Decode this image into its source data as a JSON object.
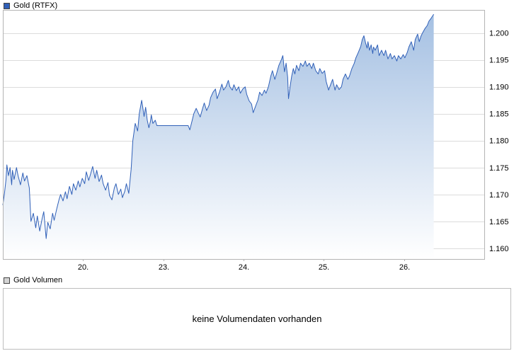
{
  "header": {
    "price_legend": "Gold (RTFX)",
    "volume_legend": "Gold Volumen"
  },
  "volume_panel": {
    "message": "keine Volumendaten vorhanden"
  },
  "colors": {
    "line": "#3060b8",
    "fill_top": "#a3bfe2",
    "fill_bottom": "#ffffff",
    "grid": "#dcdcdc",
    "border": "#b4b4b4",
    "accent": "#3060b8",
    "volume_square": "#d4d4d4",
    "text": "#000000"
  },
  "chart_data": {
    "type": "area",
    "title": "Gold (RTFX)",
    "xlabel": "",
    "ylabel": "",
    "grid": "horizontal",
    "legend_position": "top-left",
    "xlim": [
      0,
      6
    ],
    "ylim": [
      1.158,
      1.2043
    ],
    "x_ticks": [
      {
        "label": "20.",
        "t": 1
      },
      {
        "label": "23.",
        "t": 2
      },
      {
        "label": "24.",
        "t": 3
      },
      {
        "label": "25.",
        "t": 4
      },
      {
        "label": "26.",
        "t": 5
      }
    ],
    "y_ticks": [
      {
        "label": "1.200",
        "value": 1.2
      },
      {
        "label": "1.195",
        "value": 1.195
      },
      {
        "label": "1.190",
        "value": 1.19
      },
      {
        "label": "1.185",
        "value": 1.185
      },
      {
        "label": "1.180",
        "value": 1.18
      },
      {
        "label": "1.175",
        "value": 1.175
      },
      {
        "label": "1.170",
        "value": 1.17
      },
      {
        "label": "1.165",
        "value": 1.165
      },
      {
        "label": "1.160",
        "value": 1.16
      }
    ],
    "points": [
      [
        0.0,
        1.168
      ],
      [
        0.02,
        1.1702
      ],
      [
        0.04,
        1.1728
      ],
      [
        0.05,
        1.1755
      ],
      [
        0.07,
        1.1735
      ],
      [
        0.09,
        1.175
      ],
      [
        0.11,
        1.1718
      ],
      [
        0.12,
        1.1745
      ],
      [
        0.14,
        1.1728
      ],
      [
        0.17,
        1.175
      ],
      [
        0.19,
        1.1735
      ],
      [
        0.22,
        1.1718
      ],
      [
        0.25,
        1.174
      ],
      [
        0.27,
        1.1725
      ],
      [
        0.3,
        1.1735
      ],
      [
        0.33,
        1.1712
      ],
      [
        0.35,
        1.165
      ],
      [
        0.38,
        1.1665
      ],
      [
        0.41,
        1.1638
      ],
      [
        0.43,
        1.166
      ],
      [
        0.46,
        1.1632
      ],
      [
        0.49,
        1.1655
      ],
      [
        0.51,
        1.1668
      ],
      [
        0.54,
        1.1618
      ],
      [
        0.56,
        1.1648
      ],
      [
        0.59,
        1.1636
      ],
      [
        0.62,
        1.1665
      ],
      [
        0.64,
        1.1652
      ],
      [
        0.67,
        1.1672
      ],
      [
        0.7,
        1.169
      ],
      [
        0.72,
        1.17
      ],
      [
        0.75,
        1.1688
      ],
      [
        0.78,
        1.1705
      ],
      [
        0.8,
        1.1692
      ],
      [
        0.83,
        1.1715
      ],
      [
        0.86,
        1.17
      ],
      [
        0.88,
        1.172
      ],
      [
        0.91,
        1.1708
      ],
      [
        0.94,
        1.1725
      ],
      [
        0.96,
        1.1714
      ],
      [
        0.99,
        1.173
      ],
      [
        1.02,
        1.172
      ],
      [
        1.04,
        1.1742
      ],
      [
        1.07,
        1.1726
      ],
      [
        1.09,
        1.1736
      ],
      [
        1.12,
        1.1752
      ],
      [
        1.15,
        1.173
      ],
      [
        1.17,
        1.1745
      ],
      [
        1.2,
        1.1724
      ],
      [
        1.23,
        1.1736
      ],
      [
        1.25,
        1.172
      ],
      [
        1.28,
        1.1708
      ],
      [
        1.31,
        1.1722
      ],
      [
        1.33,
        1.1698
      ],
      [
        1.36,
        1.169
      ],
      [
        1.39,
        1.1712
      ],
      [
        1.41,
        1.172
      ],
      [
        1.44,
        1.17
      ],
      [
        1.47,
        1.171
      ],
      [
        1.49,
        1.1694
      ],
      [
        1.52,
        1.1706
      ],
      [
        1.54,
        1.172
      ],
      [
        1.57,
        1.1702
      ],
      [
        1.6,
        1.1748
      ],
      [
        1.62,
        1.18
      ],
      [
        1.65,
        1.1832
      ],
      [
        1.68,
        1.1818
      ],
      [
        1.7,
        1.185
      ],
      [
        1.73,
        1.1875
      ],
      [
        1.75,
        1.1856
      ],
      [
        1.76,
        1.1845
      ],
      [
        1.78,
        1.1862
      ],
      [
        1.8,
        1.1838
      ],
      [
        1.82,
        1.1824
      ],
      [
        1.84,
        1.1836
      ],
      [
        1.85,
        1.1848
      ],
      [
        1.87,
        1.1832
      ],
      [
        1.9,
        1.1838
      ],
      [
        1.92,
        1.1828
      ],
      [
        2.31,
        1.1828
      ],
      [
        2.33,
        1.182
      ],
      [
        2.36,
        1.1838
      ],
      [
        2.38,
        1.185
      ],
      [
        2.41,
        1.186
      ],
      [
        2.44,
        1.185
      ],
      [
        2.46,
        1.1844
      ],
      [
        2.49,
        1.186
      ],
      [
        2.51,
        1.187
      ],
      [
        2.54,
        1.1856
      ],
      [
        2.57,
        1.1866
      ],
      [
        2.59,
        1.188
      ],
      [
        2.62,
        1.189
      ],
      [
        2.65,
        1.1896
      ],
      [
        2.67,
        1.1878
      ],
      [
        2.7,
        1.189
      ],
      [
        2.73,
        1.1905
      ],
      [
        2.75,
        1.1894
      ],
      [
        2.78,
        1.19
      ],
      [
        2.81,
        1.1912
      ],
      [
        2.83,
        1.19
      ],
      [
        2.86,
        1.1894
      ],
      [
        2.88,
        1.1904
      ],
      [
        2.91,
        1.1893
      ],
      [
        2.94,
        1.19
      ],
      [
        2.96,
        1.1888
      ],
      [
        2.99,
        1.1896
      ],
      [
        3.02,
        1.19
      ],
      [
        3.04,
        1.1886
      ],
      [
        3.07,
        1.1874
      ],
      [
        3.1,
        1.1868
      ],
      [
        3.12,
        1.1852
      ],
      [
        3.15,
        1.1864
      ],
      [
        3.18,
        1.1876
      ],
      [
        3.2,
        1.189
      ],
      [
        3.23,
        1.1884
      ],
      [
        3.26,
        1.1894
      ],
      [
        3.28,
        1.1888
      ],
      [
        3.31,
        1.19
      ],
      [
        3.34,
        1.192
      ],
      [
        3.36,
        1.193
      ],
      [
        3.39,
        1.1914
      ],
      [
        3.41,
        1.1924
      ],
      [
        3.44,
        1.194
      ],
      [
        3.47,
        1.195
      ],
      [
        3.49,
        1.1958
      ],
      [
        3.51,
        1.1928
      ],
      [
        3.53,
        1.1944
      ],
      [
        3.55,
        1.1918
      ],
      [
        3.56,
        1.1878
      ],
      [
        3.58,
        1.19
      ],
      [
        3.6,
        1.192
      ],
      [
        3.62,
        1.1934
      ],
      [
        3.64,
        1.1924
      ],
      [
        3.66,
        1.194
      ],
      [
        3.69,
        1.193
      ],
      [
        3.71,
        1.1944
      ],
      [
        3.74,
        1.1938
      ],
      [
        3.77,
        1.1948
      ],
      [
        3.79,
        1.1938
      ],
      [
        3.82,
        1.1944
      ],
      [
        3.85,
        1.1934
      ],
      [
        3.87,
        1.1944
      ],
      [
        3.9,
        1.193
      ],
      [
        3.93,
        1.1924
      ],
      [
        3.95,
        1.1934
      ],
      [
        3.98,
        1.1925
      ],
      [
        4.01,
        1.193
      ],
      [
        4.03,
        1.191
      ],
      [
        4.06,
        1.1894
      ],
      [
        4.09,
        1.1906
      ],
      [
        4.11,
        1.1914
      ],
      [
        4.14,
        1.1894
      ],
      [
        4.16,
        1.1904
      ],
      [
        4.19,
        1.1895
      ],
      [
        4.22,
        1.19
      ],
      [
        4.24,
        1.1914
      ],
      [
        4.27,
        1.1924
      ],
      [
        4.3,
        1.1914
      ],
      [
        4.32,
        1.192
      ],
      [
        4.35,
        1.1934
      ],
      [
        4.38,
        1.1944
      ],
      [
        4.4,
        1.1954
      ],
      [
        4.43,
        1.1964
      ],
      [
        4.46,
        1.1975
      ],
      [
        4.48,
        1.1988
      ],
      [
        4.5,
        1.1995
      ],
      [
        4.52,
        1.1982
      ],
      [
        4.54,
        1.1972
      ],
      [
        4.55,
        1.1984
      ],
      [
        4.57,
        1.1968
      ],
      [
        4.59,
        1.1978
      ],
      [
        4.61,
        1.1962
      ],
      [
        4.62,
        1.1974
      ],
      [
        4.64,
        1.1968
      ],
      [
        4.67,
        1.1978
      ],
      [
        4.69,
        1.1958
      ],
      [
        4.72,
        1.1968
      ],
      [
        4.75,
        1.1958
      ],
      [
        4.77,
        1.1968
      ],
      [
        4.8,
        1.1952
      ],
      [
        4.83,
        1.1962
      ],
      [
        4.85,
        1.1952
      ],
      [
        4.88,
        1.1958
      ],
      [
        4.91,
        1.1948
      ],
      [
        4.93,
        1.1958
      ],
      [
        4.96,
        1.1952
      ],
      [
        4.99,
        1.196
      ],
      [
        5.01,
        1.1954
      ],
      [
        5.04,
        1.1964
      ],
      [
        5.06,
        1.1974
      ],
      [
        5.09,
        1.1984
      ],
      [
        5.12,
        1.1968
      ],
      [
        5.14,
        1.1988
      ],
      [
        5.17,
        1.1998
      ],
      [
        5.19,
        1.1984
      ],
      [
        5.21,
        1.1994
      ],
      [
        5.23,
        1.2
      ],
      [
        5.26,
        1.2008
      ],
      [
        5.29,
        1.2014
      ],
      [
        5.31,
        1.2022
      ],
      [
        5.34,
        1.2028
      ],
      [
        5.37,
        1.2035
      ]
    ]
  }
}
